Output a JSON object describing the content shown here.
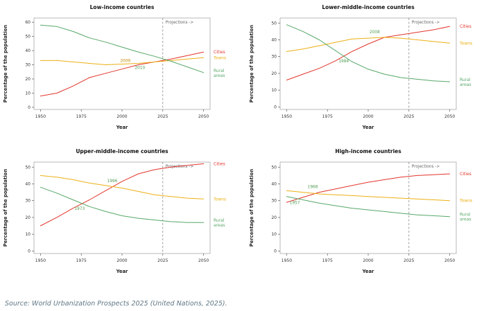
{
  "page": {
    "background": "#ffffff"
  },
  "source_note": "Source: World Urbanization Prospects 2025 (United Nations, 2025).",
  "colors": {
    "cities": "#e2332a",
    "towns": "#ecaf13",
    "rural": "#56a767"
  },
  "chart_data": [
    {
      "type": "line",
      "title": "Low-income countries",
      "xlabel": "Year",
      "ylabel": "Percentage of the population",
      "xlim": [
        1950,
        2050
      ],
      "ylim": [
        0,
        60
      ],
      "xticks": [
        1950,
        1975,
        2000,
        2025,
        2050
      ],
      "yticks": [
        0,
        10,
        20,
        30,
        40,
        50,
        60
      ],
      "projection_year": 2025,
      "projection_label": "Projections ->",
      "x": [
        1950,
        1960,
        1970,
        1980,
        1990,
        2000,
        2010,
        2020,
        2030,
        2040,
        2050
      ],
      "series": [
        {
          "name": "cities",
          "label": "Cities",
          "color": "#e2332a",
          "values": [
            8,
            10,
            15,
            21,
            24,
            27,
            30,
            32,
            34,
            36.5,
            39
          ]
        },
        {
          "name": "towns",
          "label": "Towns",
          "color": "#ecaf13",
          "values": [
            33,
            33,
            32,
            31,
            30,
            30.5,
            31,
            32,
            33,
            34,
            35
          ]
        },
        {
          "name": "rural",
          "label": "Rural areas",
          "color": "#56a767",
          "values": [
            58,
            57,
            53.5,
            49,
            46,
            42.5,
            39,
            36,
            32.5,
            28.5,
            24.5
          ]
        }
      ],
      "annotations": [
        {
          "text": "2009",
          "year": 2002,
          "value": 32,
          "color": "#c08a00"
        },
        {
          "text": "2010",
          "year": 2011,
          "value": 27,
          "color": "#4e9a51"
        }
      ]
    },
    {
      "type": "line",
      "title": "Lower-middle-income countries",
      "xlabel": "Year",
      "ylabel": "Percentage of the population",
      "xlim": [
        1950,
        2050
      ],
      "ylim": [
        0,
        50
      ],
      "xticks": [
        1950,
        1975,
        2000,
        2025,
        2050
      ],
      "yticks": [
        0,
        10,
        20,
        30,
        40,
        50
      ],
      "projection_year": 2025,
      "projection_label": "Projections ->",
      "x": [
        1950,
        1960,
        1970,
        1980,
        1990,
        2000,
        2010,
        2020,
        2030,
        2040,
        2050
      ],
      "series": [
        {
          "name": "cities",
          "label": "Cities",
          "color": "#e2332a",
          "values": [
            16,
            19.5,
            23,
            27.5,
            33,
            37.5,
            41.5,
            43,
            44.5,
            46,
            48
          ]
        },
        {
          "name": "towns",
          "label": "Towns",
          "color": "#ecaf13",
          "values": [
            33,
            34.5,
            36.5,
            38.5,
            40.5,
            41,
            41.5,
            41,
            40,
            39,
            38
          ]
        },
        {
          "name": "rural",
          "label": "Rural areas",
          "color": "#56a767",
          "values": [
            49,
            45,
            40,
            33.5,
            27,
            22.5,
            19.5,
            17.5,
            16.5,
            15.5,
            15
          ]
        }
      ],
      "annotations": [
        {
          "text": "2008",
          "year": 2004,
          "value": 44,
          "color": "#4e9a51"
        },
        {
          "text": "1984",
          "year": 1985,
          "value": 26.5,
          "color": "#4e9a51"
        }
      ]
    },
    {
      "type": "line",
      "title": "Upper-middle-income countries",
      "xlabel": "Year",
      "ylabel": "Percentage of the population",
      "xlim": [
        1950,
        2050
      ],
      "ylim": [
        0,
        50
      ],
      "xticks": [
        1950,
        1975,
        2000,
        2025,
        2050
      ],
      "yticks": [
        0,
        10,
        20,
        30,
        40,
        50
      ],
      "projection_year": 2025,
      "projection_label": "Projections ->",
      "x": [
        1950,
        1960,
        1970,
        1980,
        1990,
        2000,
        2010,
        2020,
        2030,
        2040,
        2050
      ],
      "series": [
        {
          "name": "cities",
          "label": "Cities",
          "color": "#e2332a",
          "values": [
            15,
            20,
            25.5,
            30.5,
            36,
            41.5,
            46,
            48.5,
            50,
            51,
            52
          ]
        },
        {
          "name": "towns",
          "label": "Towns",
          "color": "#ecaf13",
          "values": [
            45,
            44,
            42.5,
            40.5,
            39,
            37.5,
            35.5,
            33.5,
            32.5,
            31.5,
            31
          ]
        },
        {
          "name": "rural",
          "label": "Rural areas",
          "color": "#56a767",
          "values": [
            38,
            34.5,
            30.5,
            26.5,
            23.5,
            21,
            19.5,
            18.5,
            17.5,
            17,
            17
          ]
        }
      ],
      "annotations": [
        {
          "text": "1996",
          "year": 1994,
          "value": 41,
          "color": "#4e9a51"
        },
        {
          "text": "1973",
          "year": 1974,
          "value": 24.5,
          "color": "#4e9a51"
        }
      ]
    },
    {
      "type": "line",
      "title": "High-income countries",
      "xlabel": "Year",
      "ylabel": "Percentage of the population",
      "xlim": [
        1950,
        2050
      ],
      "ylim": [
        0,
        50
      ],
      "xticks": [
        1950,
        1975,
        2000,
        2025,
        2050
      ],
      "yticks": [
        0,
        10,
        20,
        30,
        40,
        50
      ],
      "projection_year": 2025,
      "projection_label": "Projections ->",
      "x": [
        1950,
        1960,
        1970,
        1980,
        1990,
        2000,
        2010,
        2020,
        2030,
        2040,
        2050
      ],
      "series": [
        {
          "name": "cities",
          "label": "Cities",
          "color": "#e2332a",
          "values": [
            29,
            32,
            35,
            37,
            39,
            41,
            42.5,
            44,
            45,
            45.5,
            46
          ]
        },
        {
          "name": "towns",
          "label": "Towns",
          "color": "#ecaf13",
          "values": [
            36,
            35,
            34,
            33.5,
            33,
            32.5,
            32,
            31.5,
            31,
            30.5,
            30
          ]
        },
        {
          "name": "rural",
          "label": "Rural areas",
          "color": "#56a767",
          "values": [
            32.5,
            30.5,
            28.5,
            27,
            25.5,
            24.5,
            23.5,
            22.5,
            21.5,
            21,
            20.5
          ]
        }
      ],
      "annotations": [
        {
          "text": "1968",
          "year": 1966,
          "value": 37.5,
          "color": "#4e9a51"
        },
        {
          "text": "1957",
          "year": 1955,
          "value": 28,
          "color": "#4e9a51"
        }
      ]
    }
  ]
}
